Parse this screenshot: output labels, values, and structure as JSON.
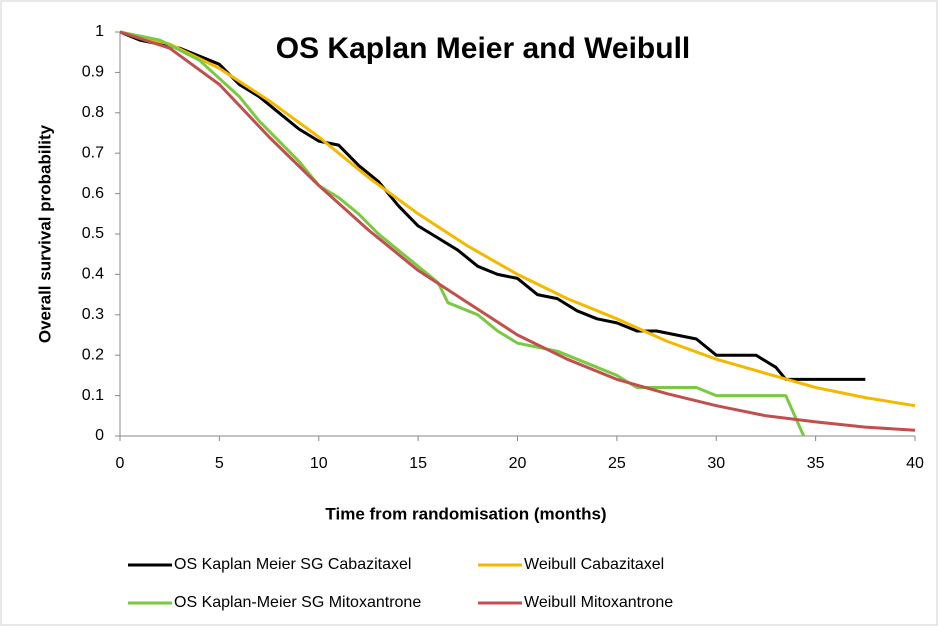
{
  "chart_data": {
    "type": "line",
    "title": "OS Kaplan Meier and Weibull",
    "xlabel": "Time from randomisation (months)",
    "ylabel": "Overall survival probability",
    "xlim": [
      0,
      40
    ],
    "xticks": [
      0,
      5,
      10,
      15,
      20,
      25,
      30,
      35,
      40
    ],
    "ylim": [
      0,
      1
    ],
    "yticks": [
      0,
      0.1,
      0.2,
      0.3,
      0.4,
      0.5,
      0.6,
      0.7,
      0.8,
      0.9,
      1
    ],
    "grid": false,
    "legend": "bottom",
    "series": [
      {
        "name": "OS Kaplan Meier SG Cabazitaxel",
        "color": "#000000",
        "x": [
          0,
          1,
          2,
          3,
          4,
          5,
          6,
          7,
          8,
          9,
          10,
          11,
          12,
          13,
          14,
          15,
          16,
          17,
          18,
          19,
          20,
          21,
          22,
          23,
          24,
          25,
          26,
          27,
          28,
          29,
          30,
          31,
          32,
          33,
          33.5,
          35,
          37.5
        ],
        "values": [
          1,
          0.98,
          0.97,
          0.96,
          0.94,
          0.92,
          0.87,
          0.84,
          0.8,
          0.76,
          0.73,
          0.72,
          0.67,
          0.63,
          0.57,
          0.52,
          0.49,
          0.46,
          0.42,
          0.4,
          0.39,
          0.35,
          0.34,
          0.31,
          0.29,
          0.28,
          0.26,
          0.26,
          0.25,
          0.24,
          0.2,
          0.2,
          0.2,
          0.17,
          0.14,
          0.14,
          0.14
        ]
      },
      {
        "name": "Weibull Cabazitaxel",
        "color": "#f5b800",
        "x": [
          0,
          2.5,
          5,
          7.5,
          10,
          12.5,
          15,
          17.5,
          20,
          22.5,
          25,
          27.5,
          30,
          32.5,
          35,
          37.5,
          40
        ],
        "values": [
          1,
          0.97,
          0.91,
          0.83,
          0.74,
          0.64,
          0.55,
          0.47,
          0.4,
          0.34,
          0.29,
          0.235,
          0.19,
          0.155,
          0.12,
          0.095,
          0.075
        ]
      },
      {
        "name": "OS Kaplan-Meier SG Mitoxantrone",
        "color": "#7ac943",
        "x": [
          0,
          2,
          4,
          6,
          7,
          8,
          9,
          10,
          11,
          12,
          13,
          14,
          15,
          16,
          16.5,
          18,
          19,
          20,
          22,
          24,
          25,
          26,
          29,
          30,
          33.5,
          34.4
        ],
        "values": [
          1,
          0.98,
          0.93,
          0.84,
          0.78,
          0.73,
          0.68,
          0.62,
          0.59,
          0.55,
          0.5,
          0.46,
          0.42,
          0.38,
          0.33,
          0.3,
          0.26,
          0.23,
          0.21,
          0.17,
          0.15,
          0.12,
          0.12,
          0.1,
          0.1,
          0
        ]
      },
      {
        "name": "Weibull Mitoxantrone",
        "color": "#c0504d",
        "x": [
          0,
          2.5,
          5,
          7.5,
          10,
          12.5,
          15,
          17.5,
          20,
          22.5,
          25,
          27.5,
          30,
          32.5,
          35,
          37.5,
          40
        ],
        "values": [
          1,
          0.96,
          0.87,
          0.74,
          0.62,
          0.51,
          0.41,
          0.33,
          0.25,
          0.19,
          0.14,
          0.105,
          0.075,
          0.05,
          0.035,
          0.022,
          0.014
        ]
      }
    ]
  }
}
